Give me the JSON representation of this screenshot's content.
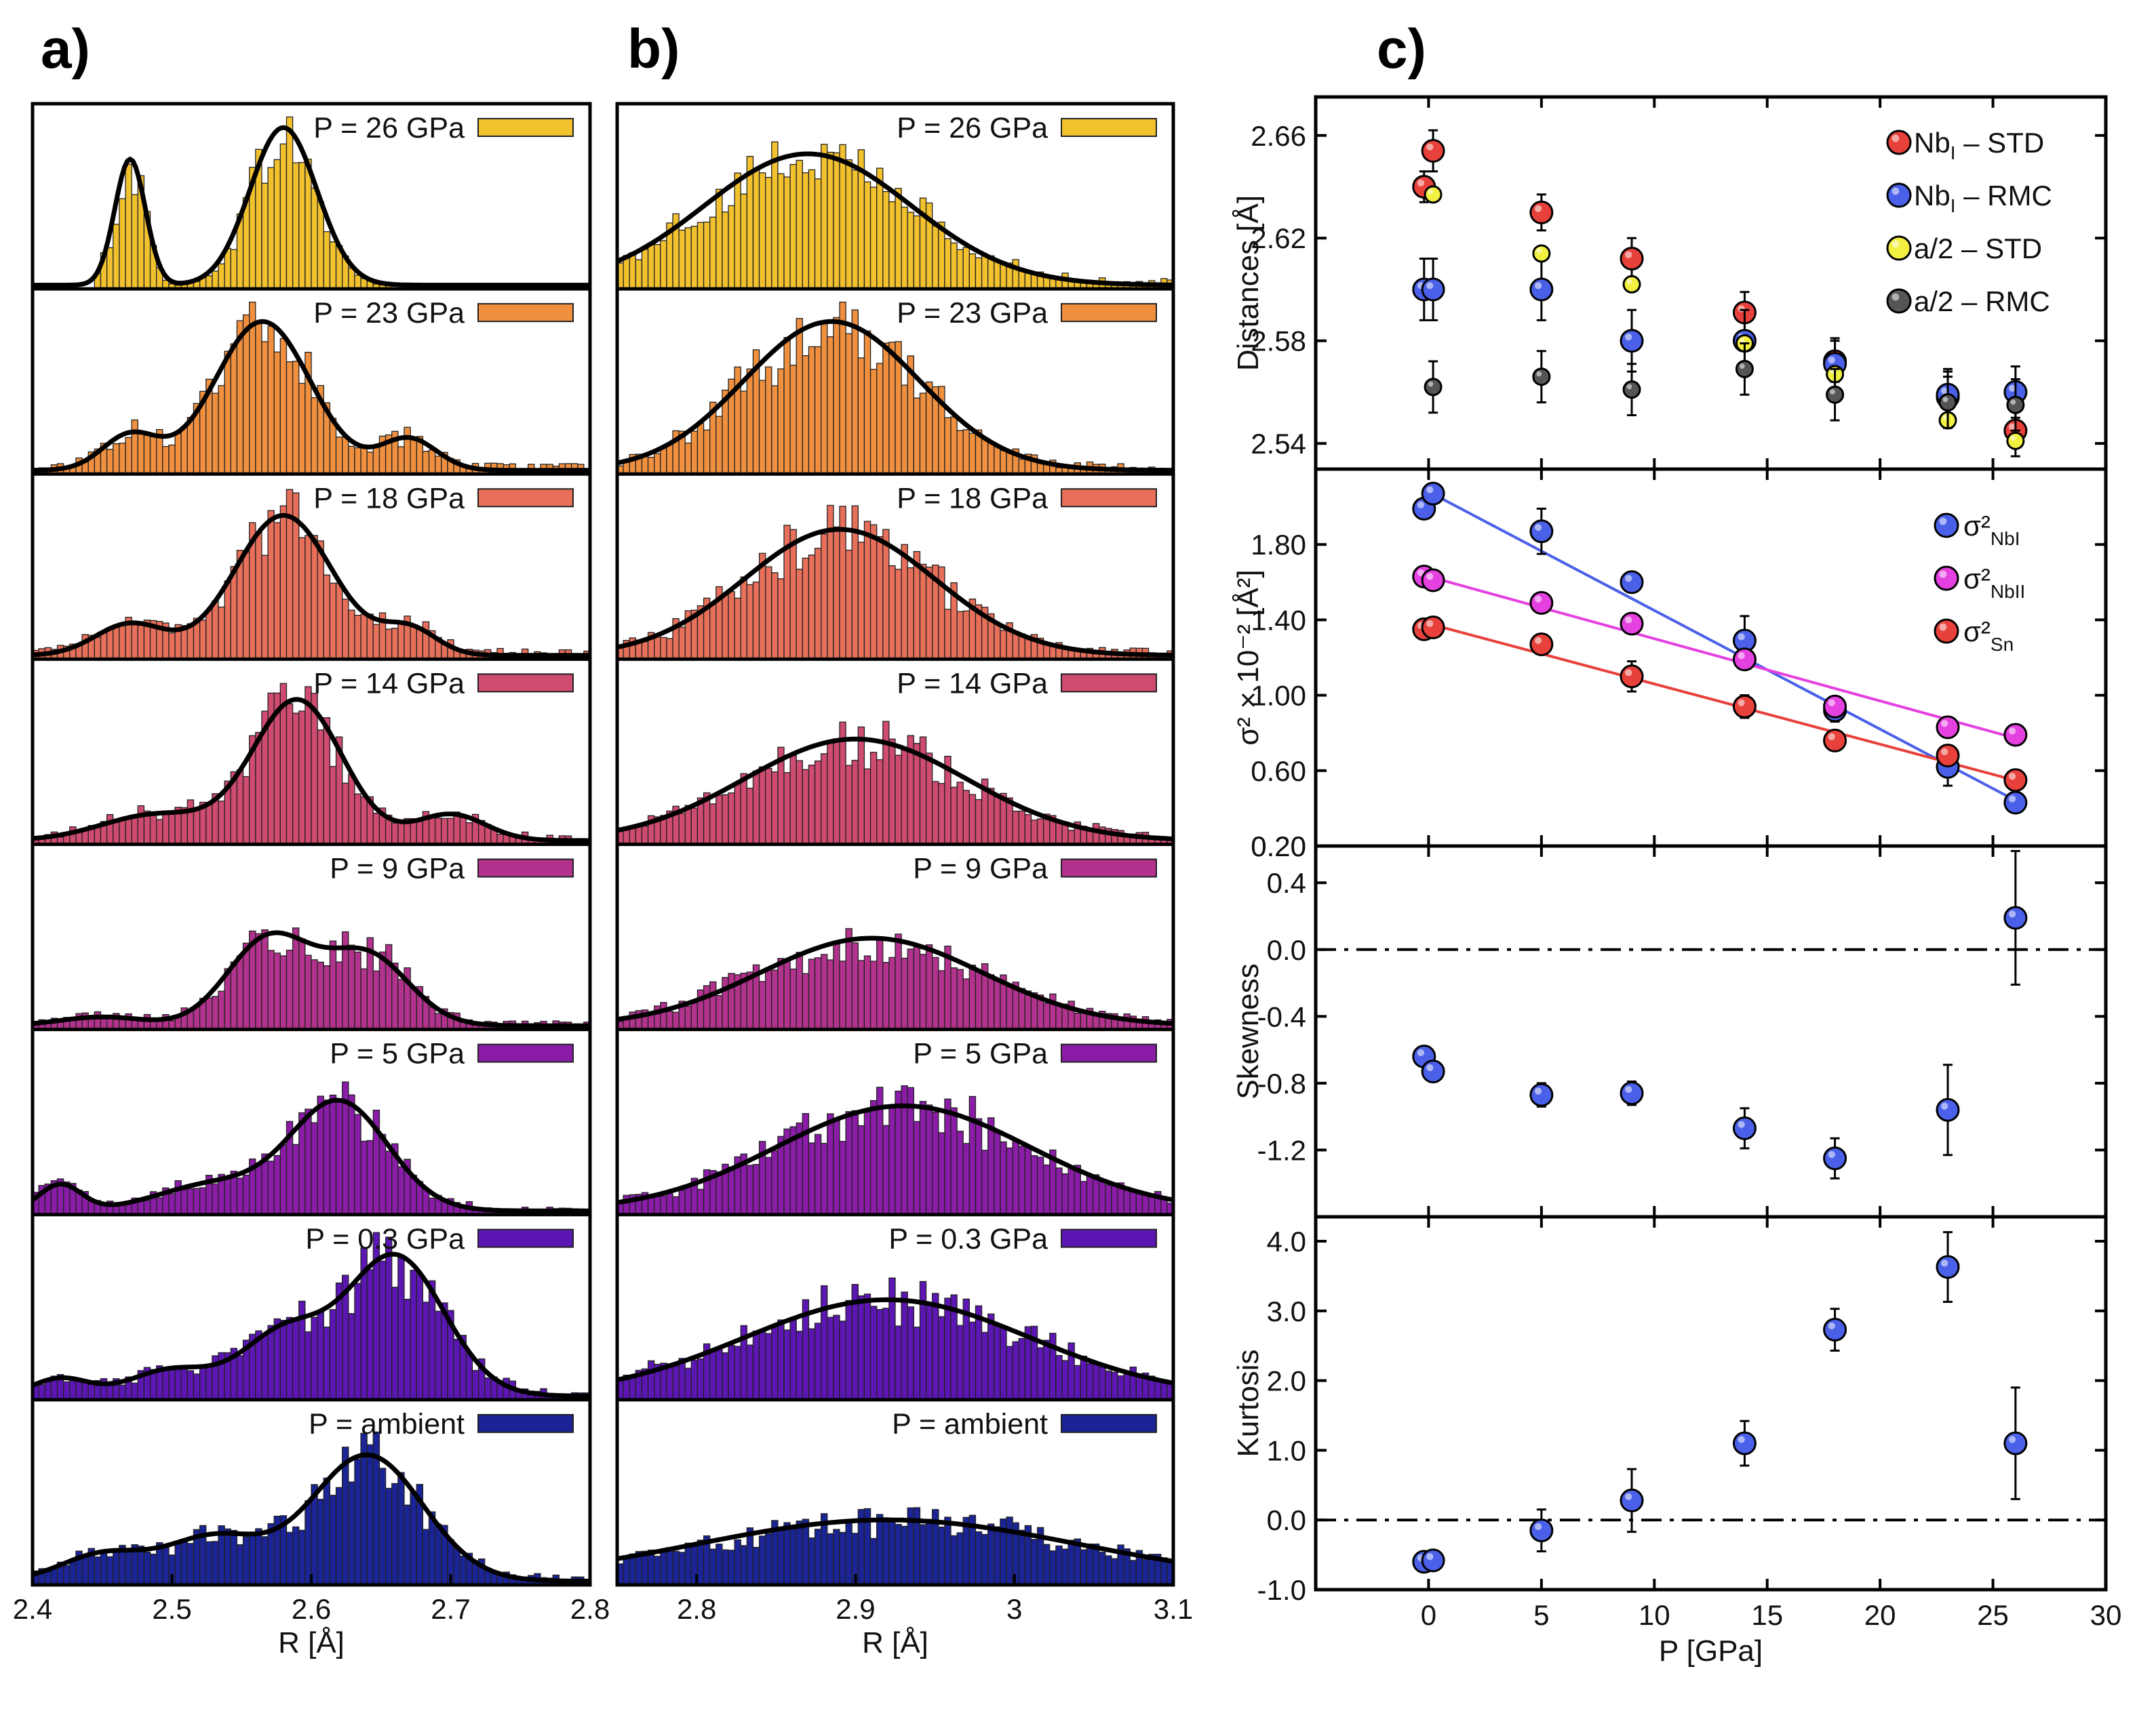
{
  "chart_data": [
    {
      "id": "a",
      "type": "histogram",
      "panel_label": "a)",
      "xlabel": "R [Å]",
      "xlim": [
        2.4,
        2.8
      ],
      "xticks": [
        "2.4",
        "2.5",
        "2.6",
        "2.7",
        "2.8"
      ],
      "series": [
        {
          "name": "P = 26 GPa",
          "color": "#F2C12E",
          "peaks": [
            [
              2.47,
              0.011,
              0.72
            ],
            [
              2.58,
              0.024,
              0.9
            ]
          ],
          "range": [
            2.445,
            2.7
          ]
        },
        {
          "name": "P = 23 GPa",
          "color": "#F0903F",
          "peaks": [
            [
              2.47,
              0.02,
              0.2
            ],
            [
              2.565,
              0.034,
              0.85
            ],
            [
              2.67,
              0.02,
              0.18
            ]
          ],
          "range": [
            2.4,
            2.8
          ]
        },
        {
          "name": "P = 18 GPa",
          "color": "#E8705A",
          "peaks": [
            [
              2.47,
              0.025,
              0.18
            ],
            [
              2.58,
              0.035,
              0.8
            ],
            [
              2.67,
              0.02,
              0.15
            ]
          ],
          "range": [
            2.4,
            2.8
          ]
        },
        {
          "name": "P = 14 GPa",
          "color": "#CF4B70",
          "peaks": [
            [
              2.49,
              0.04,
              0.15
            ],
            [
              2.59,
              0.032,
              0.8
            ],
            [
              2.7,
              0.025,
              0.15
            ]
          ],
          "range": [
            2.4,
            2.8
          ]
        },
        {
          "name": "P = 9 GPa",
          "color": "#B2328E",
          "peaks": [
            [
              2.45,
              0.03,
              0.05
            ],
            [
              2.57,
              0.03,
              0.5
            ],
            [
              2.64,
              0.03,
              0.4
            ]
          ],
          "range": [
            2.4,
            2.8
          ]
        },
        {
          "name": "P = 5 GPa",
          "color": "#8A1CA8",
          "peaks": [
            [
              2.42,
              0.015,
              0.15
            ],
            [
              2.53,
              0.04,
              0.15
            ],
            [
              2.62,
              0.035,
              0.62
            ]
          ],
          "range": [
            2.4,
            2.8
          ]
        },
        {
          "name": "P = 0.3 GPa",
          "color": "#5C16B4",
          "peaks": [
            [
              2.42,
              0.02,
              0.1
            ],
            [
              2.5,
              0.03,
              0.15
            ],
            [
              2.58,
              0.03,
              0.35
            ],
            [
              2.66,
              0.035,
              0.8
            ]
          ],
          "range": [
            2.4,
            2.8
          ]
        },
        {
          "name": "P = ambient",
          "color": "#1A2496",
          "peaks": [
            [
              2.45,
              0.03,
              0.15
            ],
            [
              2.53,
              0.035,
              0.25
            ],
            [
              2.64,
              0.04,
              0.72
            ]
          ],
          "range": [
            2.4,
            2.8
          ]
        }
      ]
    },
    {
      "id": "b",
      "type": "histogram",
      "panel_label": "b)",
      "xlabel": "R [Å]",
      "xlim": [
        2.75,
        3.1
      ],
      "xticks": [
        "2.8",
        "2.9",
        "3",
        "3.1"
      ],
      "series": [
        {
          "name": "P = 26 GPa",
          "color": "#F2C12E",
          "peaks": [
            [
              2.87,
              0.065,
              0.75
            ]
          ],
          "range": [
            2.75,
            3.1
          ]
        },
        {
          "name": "P = 23 GPa",
          "color": "#F0903F",
          "peaks": [
            [
              2.885,
              0.055,
              0.85
            ]
          ],
          "range": [
            2.75,
            3.1
          ]
        },
        {
          "name": "P = 18 GPa",
          "color": "#E8705A",
          "peaks": [
            [
              2.89,
              0.06,
              0.72
            ]
          ],
          "range": [
            2.75,
            3.1
          ]
        },
        {
          "name": "P = 14 GPa",
          "color": "#CF4B70",
          "peaks": [
            [
              2.9,
              0.07,
              0.58
            ]
          ],
          "range": [
            2.75,
            3.1
          ]
        },
        {
          "name": "P = 9 GPa",
          "color": "#B2328E",
          "peaks": [
            [
              2.91,
              0.07,
              0.5
            ]
          ],
          "range": [
            2.75,
            3.1
          ]
        },
        {
          "name": "P = 5 GPa",
          "color": "#8A1CA8",
          "peaks": [
            [
              2.93,
              0.08,
              0.6
            ]
          ],
          "range": [
            2.75,
            3.1
          ]
        },
        {
          "name": "P = 0.3 GPa",
          "color": "#5C16B4",
          "peaks": [
            [
              2.92,
              0.09,
              0.55
            ]
          ],
          "range": [
            2.75,
            3.1
          ]
        },
        {
          "name": "P = ambient",
          "color": "#1A2496",
          "peaks": [
            [
              2.92,
              0.12,
              0.35
            ]
          ],
          "range": [
            2.75,
            3.1
          ]
        }
      ]
    },
    {
      "id": "c1",
      "type": "scatter",
      "panel_label": "c)",
      "ylabel": "Distances [Å]",
      "xlim": [
        -5,
        30
      ],
      "ylim": [
        2.53,
        2.675
      ],
      "yticks": [
        2.54,
        2.58,
        2.62,
        2.66
      ],
      "yticklabels": [
        "2.54",
        "2.58",
        "2.62",
        "2.66"
      ],
      "series": [
        {
          "name": "Nb",
          "name_sub": "I",
          "name_tail": " – STD",
          "color": "#E8403A",
          "x": [
            -0.2,
            0.2,
            5,
            9,
            14,
            18,
            23,
            26
          ],
          "y": [
            2.64,
            2.654,
            2.63,
            2.612,
            2.591,
            2.572,
            2.558,
            2.545
          ],
          "err": [
            0.006,
            0.008,
            0.007,
            0.008,
            0.008,
            0.008,
            0.01,
            0.01
          ]
        },
        {
          "name": "Nb",
          "name_sub": "I",
          "name_tail": " – RMC",
          "color": "#4A60E8",
          "x": [
            -0.2,
            0.2,
            5,
            9,
            14,
            18,
            23,
            26
          ],
          "y": [
            2.6,
            2.6,
            2.6,
            2.58,
            2.58,
            2.571,
            2.559,
            2.56
          ],
          "err": [
            0.012,
            0.012,
            0.012,
            0.012,
            0.012,
            0.01,
            0.01,
            0.01
          ]
        },
        {
          "name": "a/2",
          "name_sub": "",
          "name_tail": " – STD",
          "color": "#F2F040",
          "x": [
            0.2,
            5,
            9,
            14,
            18,
            23,
            26
          ],
          "y": [
            2.637,
            2.614,
            2.602,
            2.579,
            2.567,
            2.549,
            2.541
          ],
          "err": [
            0,
            0,
            0,
            0,
            0,
            0,
            0
          ]
        },
        {
          "name": "a/2",
          "name_sub": "",
          "name_tail": " – RMC",
          "color": "#555555",
          "x": [
            0.2,
            5,
            9,
            14,
            18,
            23,
            26
          ],
          "y": [
            2.562,
            2.566,
            2.561,
            2.569,
            2.559,
            2.556,
            2.555
          ],
          "err": [
            0.01,
            0.01,
            0.01,
            0.01,
            0.01,
            0.01,
            0.01
          ]
        }
      ]
    },
    {
      "id": "c2",
      "type": "scatter",
      "ylabel": "σ² × 10⁻² [Å²]",
      "xlim": [
        -5,
        30
      ],
      "ylim": [
        0.2,
        2.2
      ],
      "yticks": [
        0.2,
        0.6,
        1.0,
        1.4,
        1.8
      ],
      "yticklabels": [
        "0.20",
        "0.60",
        "1.00",
        "1.40",
        "1.80"
      ],
      "series": [
        {
          "name": "σ²",
          "name_sub": "NbI",
          "color": "#4A60E8",
          "fit": [
            2.08,
            -0.063
          ],
          "x": [
            -0.2,
            0.2,
            5,
            9,
            14,
            18,
            23,
            26
          ],
          "y": [
            1.99,
            2.07,
            1.87,
            1.6,
            1.29,
            0.92,
            0.62,
            0.43
          ],
          "err": [
            0.05,
            0.05,
            0.12,
            0.05,
            0.13,
            0.06,
            0.1,
            0.05
          ]
        },
        {
          "name": "σ²",
          "name_sub": "NbII",
          "color": "#E540E0",
          "fit": [
            1.63,
            -0.033
          ],
          "x": [
            -0.2,
            0.2,
            5,
            9,
            14,
            18,
            23,
            26
          ],
          "y": [
            1.63,
            1.61,
            1.49,
            1.38,
            1.19,
            0.94,
            0.83,
            0.79
          ],
          "err": [
            0.05,
            0.05,
            0.05,
            0.05,
            0.05,
            0.05,
            0.05,
            0.05
          ]
        },
        {
          "name": "σ²",
          "name_sub": "Sn",
          "color": "#E8403A",
          "fit": [
            1.38,
            -0.032
          ],
          "x": [
            -0.2,
            0.2,
            5,
            9,
            14,
            18,
            23,
            26
          ],
          "y": [
            1.35,
            1.36,
            1.27,
            1.1,
            0.94,
            0.76,
            0.68,
            0.55
          ],
          "err": [
            0.05,
            0.05,
            0.05,
            0.08,
            0.06,
            0.05,
            0.05,
            0.05
          ]
        }
      ]
    },
    {
      "id": "c3",
      "type": "scatter",
      "ylabel": "Skewness",
      "xlim": [
        -5,
        30
      ],
      "ylim": [
        -1.6,
        0.62
      ],
      "yticks": [
        -1.2,
        -0.8,
        -0.4,
        0.0,
        0.4
      ],
      "yticklabels": [
        "-1.2",
        "-0.8",
        "-0.4",
        "0.0",
        "0.4"
      ],
      "tick_top_label": "0.20",
      "reference_line": 0,
      "series": [
        {
          "name": "Skewness",
          "color": "#4A60E8",
          "x": [
            -0.2,
            0.2,
            5,
            9,
            14,
            18,
            23,
            26
          ],
          "y": [
            -0.64,
            -0.73,
            -0.87,
            -0.86,
            -1.07,
            -1.25,
            -0.96,
            0.19
          ],
          "err": [
            0.03,
            0.03,
            0.07,
            0.07,
            0.12,
            0.12,
            0.27,
            0.4
          ]
        }
      ]
    },
    {
      "id": "c4",
      "type": "scatter",
      "ylabel": "Kurtosis",
      "xlabel": "P [GPa]",
      "xlim": [
        -5,
        30
      ],
      "ylim": [
        -1.0,
        4.35
      ],
      "yticks": [
        -1.0,
        0.0,
        1.0,
        2.0,
        3.0,
        4.0
      ],
      "yticklabels": [
        "-1.0",
        "0.0",
        "1.0",
        "2.0",
        "3.0",
        "4.0"
      ],
      "xticks": [
        0,
        5,
        10,
        15,
        20,
        25,
        30
      ],
      "xticklabels": [
        "0",
        "5",
        "10",
        "15",
        "20",
        "25",
        "30"
      ],
      "reference_line": 0,
      "series": [
        {
          "name": "Kurtosis",
          "color": "#4A60E8",
          "x": [
            -0.2,
            0.2,
            5,
            9,
            14,
            18,
            23,
            26
          ],
          "y": [
            -0.6,
            -0.58,
            -0.15,
            0.28,
            1.1,
            2.73,
            3.63,
            1.1
          ],
          "err": [
            0.05,
            0.05,
            0.3,
            0.45,
            0.32,
            0.3,
            0.5,
            0.8
          ]
        }
      ]
    }
  ]
}
